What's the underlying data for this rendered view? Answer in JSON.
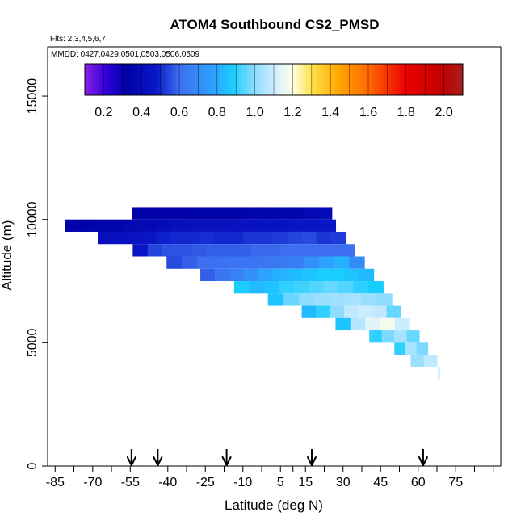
{
  "chart_data": {
    "type": "heatmap",
    "title": "ATOM4 Southbound CS2_PMSD",
    "flights_label": "Flts: 2,3,4,5,6,7",
    "mmdd_label": "MMDD: 0427,0429,0501,0503,0506,0509",
    "xlabel": "Latitude (deg N)",
    "ylabel": "Altitude (m)",
    "xlim": [
      -88,
      93
    ],
    "ylim": [
      0,
      17000
    ],
    "x_ticks": [
      -85,
      -70,
      -55,
      -40,
      -25,
      -10,
      5,
      15,
      30,
      45,
      60,
      75
    ],
    "x_tick_labels": [
      "-85",
      "-70",
      "-55",
      "-40",
      "-25",
      "-10",
      "5",
      "15",
      "30",
      "45",
      "60",
      "75"
    ],
    "x_minor_ticks": [
      -77.5,
      -62.5,
      -47.5,
      -32.5,
      -17.5,
      -2.5,
      10,
      22.5,
      37.5,
      52.5,
      67.5,
      82.5,
      90
    ],
    "y_ticks": [
      0,
      5000,
      10000,
      15000
    ],
    "y_tick_labels": [
      "0",
      "5000",
      "10000",
      "15000"
    ],
    "colorbar": {
      "min": 0.1,
      "max": 2.1,
      "tick_values": [
        0.2,
        0.4,
        0.6,
        0.8,
        1.0,
        1.2,
        1.4,
        1.6,
        1.8,
        2.0
      ],
      "tick_labels": [
        "0.2",
        "0.4",
        "0.6",
        "0.8",
        "1.0",
        "1.2",
        "1.4",
        "1.6",
        "1.8",
        "2.0"
      ],
      "stops": [
        {
          "v": 0.1,
          "c": "#8b1fe8"
        },
        {
          "v": 0.22,
          "c": "#2c00d8"
        },
        {
          "v": 0.32,
          "c": "#0000a6"
        },
        {
          "v": 0.48,
          "c": "#0a18c8"
        },
        {
          "v": 0.6,
          "c": "#3d6ff0"
        },
        {
          "v": 0.8,
          "c": "#2aa8ff"
        },
        {
          "v": 0.88,
          "c": "#19cdff"
        },
        {
          "v": 1.0,
          "c": "#8fdcff"
        },
        {
          "v": 1.12,
          "c": "#d8f0ff"
        },
        {
          "v": 1.2,
          "c": "#ffffe6"
        },
        {
          "v": 1.3,
          "c": "#ffe14a"
        },
        {
          "v": 1.45,
          "c": "#ffa500"
        },
        {
          "v": 1.6,
          "c": "#ff6a00"
        },
        {
          "v": 1.8,
          "c": "#ee0000"
        },
        {
          "v": 2.0,
          "c": "#c00000"
        },
        {
          "v": 2.1,
          "c": "#a82020"
        }
      ]
    },
    "bin_height_m": 500,
    "rows": [
      {
        "alt": 10250,
        "lat_start": -54.2,
        "lat_end": 25.5,
        "values": [
          0.33,
          0.33,
          0.33,
          0.33,
          0.34,
          0.34,
          0.33,
          0.34,
          0.35,
          0.35,
          0.36,
          0.36,
          0.38,
          0.4
        ]
      },
      {
        "alt": 9750,
        "lat_start": -81,
        "lat_end": 27,
        "values": [
          0.34,
          0.34,
          0.35,
          0.35,
          0.37,
          0.38,
          0.4,
          0.42,
          0.43,
          0.43,
          0.43,
          0.44,
          0.44,
          0.45,
          0.45,
          0.46,
          0.46,
          0.47
        ]
      },
      {
        "alt": 9250,
        "lat_start": -68,
        "lat_end": 31,
        "values": [
          0.42,
          0.43,
          0.44,
          0.46,
          0.49,
          0.5,
          0.5,
          0.51,
          0.5,
          0.5,
          0.52,
          0.52,
          0.53,
          0.54,
          0.55,
          0.52,
          0.53
        ]
      },
      {
        "alt": 8750,
        "lat_start": -54,
        "lat_end": 34.5,
        "values": [
          0.46,
          0.54,
          0.56,
          0.56,
          0.57,
          0.58,
          0.58,
          0.58,
          0.59,
          0.59,
          0.6,
          0.6,
          0.6,
          0.6,
          0.6
        ]
      },
      {
        "alt": 8250,
        "lat_start": -40.5,
        "lat_end": 38.5,
        "values": [
          0.55,
          0.58,
          0.6,
          0.61,
          0.62,
          0.62,
          0.63,
          0.64,
          0.65,
          0.72,
          0.78,
          0.82,
          0.7
        ]
      },
      {
        "alt": 7750,
        "lat_start": -27,
        "lat_end": 42.2,
        "values": [
          0.58,
          0.62,
          0.66,
          0.72,
          0.78,
          0.82,
          0.84,
          0.86,
          0.88,
          0.88,
          0.86,
          0.84
        ]
      },
      {
        "alt": 7250,
        "lat_start": -13.5,
        "lat_end": 46,
        "values": [
          0.88,
          0.84,
          0.86,
          0.9,
          0.92,
          0.94,
          0.96,
          0.94,
          0.9,
          0.88
        ]
      },
      {
        "alt": 6750,
        "lat_start": 0,
        "lat_end": 49.5,
        "values": [
          0.86,
          0.96,
          1.0,
          1.02,
          1.03,
          1.04,
          1.02,
          1.0
        ]
      },
      {
        "alt": 6250,
        "lat_start": 13.5,
        "lat_end": 53,
        "values": [
          0.84,
          0.9,
          1.0,
          1.08,
          1.1,
          1.08,
          0.96
        ]
      },
      {
        "alt": 5750,
        "lat_start": 27,
        "lat_end": 56.6,
        "values": [
          0.86,
          1.06,
          1.14,
          1.18,
          1.1
        ]
      },
      {
        "alt": 5250,
        "lat_start": 40.5,
        "lat_end": 60.4,
        "values": [
          0.9,
          0.98,
          1.04,
          0.96
        ]
      },
      {
        "alt": 4750,
        "lat_start": 50.5,
        "lat_end": 63.8,
        "values": [
          0.9,
          1.04,
          0.98
        ]
      },
      {
        "alt": 4250,
        "lat_start": 57,
        "lat_end": 67.5,
        "values": [
          1.02,
          1.08
        ]
      }
    ],
    "markers": [
      {
        "lat": 68.3,
        "alt": 3750,
        "value": 1.04
      }
    ],
    "arrow_latitudes": [
      -54.5,
      -44,
      -16.5,
      17.5,
      62
    ]
  }
}
